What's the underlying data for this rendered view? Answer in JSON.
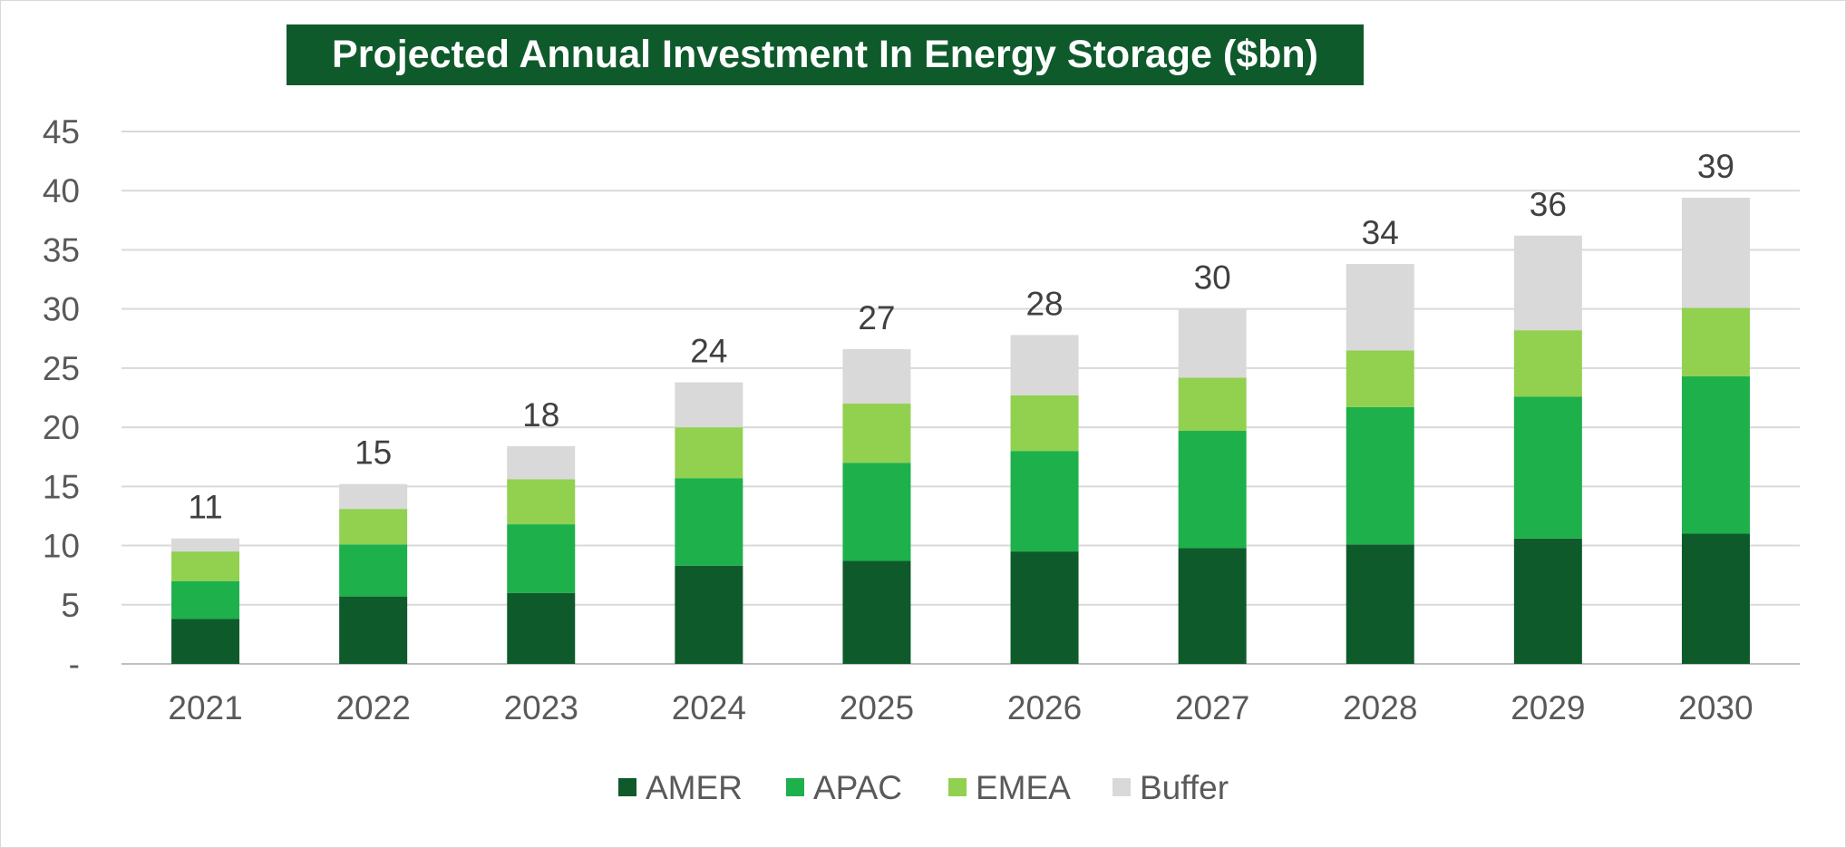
{
  "chart_data": {
    "type": "bar",
    "stacked": true,
    "title": "Projected Annual Investment In Energy Storage ($bn)",
    "categories": [
      "2021",
      "2022",
      "2023",
      "2024",
      "2025",
      "2026",
      "2027",
      "2028",
      "2029",
      "2030"
    ],
    "series": [
      {
        "name": "AMER",
        "color": "#0e5a2b",
        "values": [
          3.8,
          5.7,
          6.0,
          8.3,
          8.7,
          9.5,
          9.8,
          10.1,
          10.6,
          11.0
        ]
      },
      {
        "name": "APAC",
        "color": "#1db04b",
        "values": [
          3.2,
          4.4,
          5.8,
          7.4,
          8.3,
          8.5,
          9.9,
          11.6,
          12.0,
          13.3
        ]
      },
      {
        "name": "EMEA",
        "color": "#92d050",
        "values": [
          2.5,
          3.0,
          3.8,
          4.3,
          5.0,
          4.7,
          4.5,
          4.8,
          5.6,
          5.8
        ]
      },
      {
        "name": "Buffer",
        "color": "#d9d9d9",
        "values": [
          1.1,
          2.1,
          2.8,
          3.8,
          4.6,
          5.1,
          5.8,
          7.3,
          8.0,
          9.3
        ]
      }
    ],
    "totals": [
      "11",
      "15",
      "18",
      "24",
      "27",
      "28",
      "30",
      "34",
      "36",
      "39"
    ],
    "y_ticks": [
      "-",
      "5",
      "10",
      "15",
      "20",
      "25",
      "30",
      "35",
      "40",
      "45"
    ],
    "ylim": [
      0,
      45
    ],
    "xlabel": "",
    "ylabel": "",
    "grid": true,
    "legend": "bottom-center"
  }
}
